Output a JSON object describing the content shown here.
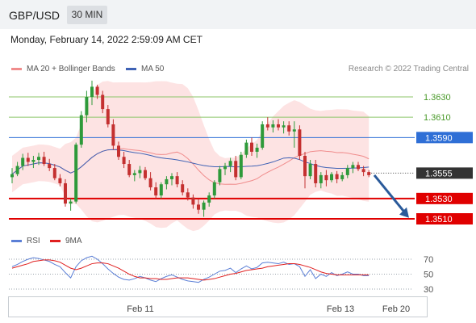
{
  "header": {
    "pair": "GBP/USD",
    "timeframe": "30 MIN"
  },
  "timestamp": "Monday, February 14, 2022 2:59:09 AM CET",
  "legend": {
    "ma20_label": "MA 20 + Bollinger Bands",
    "ma20_color": "#f08c8c",
    "ma50_label": "MA 50",
    "ma50_color": "#3f62b5"
  },
  "copyright": "Research © 2022 Trading Central",
  "rsi_legend": {
    "rsi_label": "RSI",
    "rsi_color": "#5b7fd6",
    "ma_label": "9MA",
    "ma_color": "#e02020"
  },
  "chart_data": [
    {
      "type": "candlestick",
      "ylim": [
        1.3502,
        1.3648
      ],
      "levels": [
        {
          "value": 1.363,
          "label": "1.3630",
          "color": "#8cc66a",
          "style": "green-line"
        },
        {
          "value": 1.361,
          "label": "1.3610",
          "color": "#8cc66a",
          "style": "green-line"
        },
        {
          "value": 1.359,
          "label": "1.3590",
          "color": "#2f6fd6",
          "style": "blue-tag"
        },
        {
          "value": 1.3555,
          "label": "1.3555",
          "color": "#333333",
          "style": "dark-tag"
        },
        {
          "value": 1.353,
          "label": "1.3530",
          "color": "#e00000",
          "style": "red-tag"
        },
        {
          "value": 1.351,
          "label": "1.3510",
          "color": "#e00000",
          "style": "red-tag"
        }
      ],
      "forecast_arrow": {
        "from": 1.3553,
        "to": 1.3511,
        "color": "#2a5a9a"
      },
      "candles": [
        [
          1.3551,
          1.356,
          1.3545,
          1.3554
        ],
        [
          1.3554,
          1.3566,
          1.3552,
          1.3562
        ],
        [
          1.3562,
          1.3574,
          1.3558,
          1.357
        ],
        [
          1.357,
          1.3575,
          1.3562,
          1.3566
        ],
        [
          1.3566,
          1.3572,
          1.356,
          1.3568
        ],
        [
          1.3568,
          1.3575,
          1.3563,
          1.3571
        ],
        [
          1.3571,
          1.3576,
          1.3562,
          1.3564
        ],
        [
          1.3564,
          1.3569,
          1.3557,
          1.356
        ],
        [
          1.356,
          1.3564,
          1.3548,
          1.355
        ],
        [
          1.355,
          1.3554,
          1.3542,
          1.3545
        ],
        [
          1.3545,
          1.3549,
          1.3522,
          1.3525
        ],
        [
          1.3525,
          1.353,
          1.3518,
          1.3527
        ],
        [
          1.3527,
          1.3585,
          1.3525,
          1.3583
        ],
        [
          1.3583,
          1.3616,
          1.358,
          1.3612
        ],
        [
          1.3612,
          1.3636,
          1.3605,
          1.363
        ],
        [
          1.363,
          1.3646,
          1.3622,
          1.364
        ],
        [
          1.364,
          1.3642,
          1.3628,
          1.3632
        ],
        [
          1.3632,
          1.3636,
          1.3614,
          1.3618
        ],
        [
          1.3618,
          1.3622,
          1.36,
          1.3603
        ],
        [
          1.3603,
          1.3608,
          1.3578,
          1.3582
        ],
        [
          1.3582,
          1.3586,
          1.3568,
          1.3571
        ],
        [
          1.3571,
          1.3576,
          1.356,
          1.3564
        ],
        [
          1.3564,
          1.3568,
          1.3551,
          1.3553
        ],
        [
          1.3553,
          1.3558,
          1.3547,
          1.3555
        ],
        [
          1.3555,
          1.3562,
          1.355,
          1.3558
        ],
        [
          1.3558,
          1.3561,
          1.3548,
          1.355
        ],
        [
          1.355,
          1.3556,
          1.3538,
          1.3541
        ],
        [
          1.3541,
          1.3546,
          1.353,
          1.3533
        ],
        [
          1.3533,
          1.3546,
          1.353,
          1.3544
        ],
        [
          1.3544,
          1.3552,
          1.3539,
          1.3549
        ],
        [
          1.3549,
          1.3555,
          1.3543,
          1.3552
        ],
        [
          1.3552,
          1.3556,
          1.3541,
          1.3544
        ],
        [
          1.3544,
          1.3548,
          1.3533,
          1.3536
        ],
        [
          1.3536,
          1.354,
          1.3528,
          1.3531
        ],
        [
          1.3531,
          1.3534,
          1.352,
          1.3524
        ],
        [
          1.3524,
          1.353,
          1.3515,
          1.3519
        ],
        [
          1.3519,
          1.3528,
          1.3512,
          1.3526
        ],
        [
          1.3526,
          1.3536,
          1.3522,
          1.3533
        ],
        [
          1.3533,
          1.3548,
          1.353,
          1.3546
        ],
        [
          1.3546,
          1.3562,
          1.3543,
          1.3559
        ],
        [
          1.3559,
          1.3565,
          1.3553,
          1.3562
        ],
        [
          1.3562,
          1.357,
          1.3556,
          1.3567
        ],
        [
          1.3567,
          1.3572,
          1.3548,
          1.3551
        ],
        [
          1.3551,
          1.3576,
          1.3549,
          1.3573
        ],
        [
          1.3573,
          1.3588,
          1.357,
          1.3585
        ],
        [
          1.3585,
          1.359,
          1.3572,
          1.3576
        ],
        [
          1.3576,
          1.3584,
          1.357,
          1.358
        ],
        [
          1.358,
          1.3606,
          1.3578,
          1.3603
        ],
        [
          1.3603,
          1.361,
          1.3597,
          1.36
        ],
        [
          1.36,
          1.3607,
          1.3595,
          1.3603
        ],
        [
          1.3603,
          1.3608,
          1.3597,
          1.36
        ],
        [
          1.36,
          1.3606,
          1.3594,
          1.3602
        ],
        [
          1.3602,
          1.3606,
          1.3592,
          1.3596
        ],
        [
          1.3596,
          1.3606,
          1.358,
          1.3598
        ],
        [
          1.3598,
          1.3602,
          1.3568,
          1.3572
        ],
        [
          1.3572,
          1.3576,
          1.354,
          1.3552
        ],
        [
          1.3552,
          1.3568,
          1.3549,
          1.3564
        ],
        [
          1.3564,
          1.3568,
          1.3541,
          1.3545
        ],
        [
          1.3545,
          1.3556,
          1.354,
          1.3553
        ],
        [
          1.3553,
          1.3558,
          1.3542,
          1.3548
        ],
        [
          1.3548,
          1.3556,
          1.3546,
          1.3554
        ],
        [
          1.3554,
          1.3557,
          1.3545,
          1.3549
        ],
        [
          1.3549,
          1.3556,
          1.3547,
          1.3553
        ],
        [
          1.3553,
          1.3563,
          1.355,
          1.356
        ],
        [
          1.356,
          1.3566,
          1.3555,
          1.3563
        ],
        [
          1.3563,
          1.3566,
          1.3557,
          1.3559
        ],
        [
          1.3559,
          1.3562,
          1.3552,
          1.3556
        ],
        [
          1.3556,
          1.3558,
          1.3551,
          1.3553
        ]
      ]
    },
    {
      "type": "line",
      "name": "RSI panel",
      "ylim": [
        20,
        80
      ],
      "ticks": [
        70,
        50,
        30
      ],
      "rsi": [
        60,
        63,
        67,
        70,
        72,
        71,
        69,
        67,
        63,
        60,
        52,
        45,
        60,
        68,
        72,
        74,
        70,
        64,
        57,
        51,
        46,
        43,
        42,
        44,
        47,
        45,
        42,
        40,
        44,
        47,
        49,
        46,
        43,
        41,
        40,
        39,
        43,
        46,
        50,
        54,
        55,
        58,
        52,
        57,
        61,
        57,
        59,
        65,
        66,
        65,
        64,
        66,
        63,
        64,
        60,
        47,
        56,
        44,
        50,
        47,
        52,
        48,
        50,
        53,
        50,
        50,
        48,
        48
      ],
      "ma": [
        58,
        60,
        62,
        64,
        67,
        68,
        69,
        69,
        68,
        66,
        62,
        58,
        56,
        58,
        61,
        64,
        65,
        65,
        64,
        61,
        58,
        54,
        50,
        47,
        45,
        45,
        44,
        44,
        43,
        43,
        44,
        45,
        45,
        45,
        44,
        43,
        42,
        43,
        44,
        46,
        48,
        50,
        51,
        53,
        55,
        56,
        57,
        58,
        60,
        61,
        62,
        63,
        64,
        64,
        63,
        61,
        59,
        56,
        53,
        51,
        50,
        49,
        49,
        49,
        49,
        49,
        49,
        49
      ],
      "x_ticks": [
        "Feb 11",
        "Feb 13",
        "Feb 20"
      ]
    }
  ]
}
